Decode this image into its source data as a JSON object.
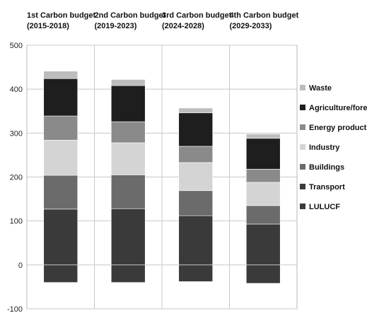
{
  "chart_data": {
    "type": "bar",
    "stacked": true,
    "categories": [
      {
        "line1": "1st Carbon budget",
        "line2": "(2015-2018)"
      },
      {
        "line1": "2nd Carbon budget",
        "line2": "(2019-2023)"
      },
      {
        "line1": "3rd Carbon budget",
        "line2": "(2024-2028)"
      },
      {
        "line1": "4th Carbon budget",
        "line2": "(2029-2033)"
      }
    ],
    "series": [
      {
        "name": "LULUCF",
        "color": "#3a3a3a",
        "values": [
          -40,
          -40,
          -38,
          -42
        ]
      },
      {
        "name": "Transport",
        "color": "#3a3a3a",
        "values": [
          127,
          128,
          112,
          93
        ]
      },
      {
        "name": "Buildings",
        "color": "#6b6b6b",
        "values": [
          77,
          77,
          57,
          42
        ]
      },
      {
        "name": "Industry",
        "color": "#d4d4d4",
        "values": [
          80,
          73,
          64,
          53
        ]
      },
      {
        "name": "Energy production",
        "color": "#8a8a8a",
        "values": [
          55,
          48,
          37,
          30
        ]
      },
      {
        "name": "Agriculture/forestry",
        "color": "#1e1e1e",
        "values": [
          85,
          82,
          76,
          70
        ]
      },
      {
        "name": "Waste",
        "color": "#bdbdbd",
        "values": [
          17,
          14,
          11,
          10
        ]
      }
    ],
    "legend_order": [
      "Waste",
      "Agriculture/forestry",
      "Energy production",
      "Industry",
      "Buildings",
      "Transport",
      "LULUCF"
    ],
    "yticks": [
      "500",
      "400",
      "300",
      "200",
      "100",
      "0",
      "-100"
    ],
    "ylim": [
      -100,
      500
    ],
    "grid": true,
    "legend_position": "right"
  }
}
